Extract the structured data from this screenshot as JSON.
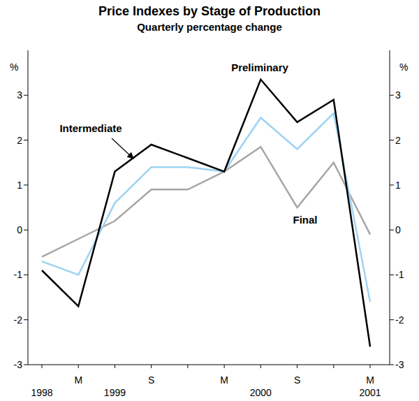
{
  "chart_data": {
    "type": "line",
    "title": "Price Indexes by Stage of Production",
    "subtitle": "Quarterly percentage change",
    "y_label": "%",
    "categories": [
      null,
      "M",
      null,
      "S",
      null,
      "M",
      null,
      "S",
      null,
      "M"
    ],
    "year_labels": [
      "1998",
      null,
      "1999",
      null,
      null,
      null,
      "2000",
      null,
      null,
      "2001"
    ],
    "series": [
      {
        "name": "Preliminary",
        "color": "#000000",
        "values": [
          -0.9,
          -1.7,
          1.3,
          1.9,
          1.6,
          1.3,
          3.35,
          2.4,
          2.9,
          -2.6
        ]
      },
      {
        "name": "Intermediate",
        "color": "#9fd3f3",
        "values": [
          -0.7,
          -1.0,
          0.6,
          1.4,
          1.4,
          1.3,
          2.5,
          1.8,
          2.6,
          -1.6
        ]
      },
      {
        "name": "Final",
        "color": "#a6a6a6",
        "values": [
          -0.6,
          -0.2,
          0.2,
          0.9,
          0.9,
          1.3,
          1.85,
          0.5,
          1.5,
          -0.1
        ]
      }
    ],
    "ylim": [
      -3,
      4
    ],
    "yticks": [
      -3,
      -2,
      -1,
      0,
      1,
      2,
      3
    ],
    "grid": false
  }
}
